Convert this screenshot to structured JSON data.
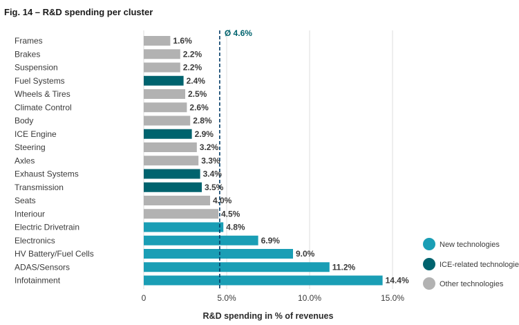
{
  "figure_title": "Fig. 14 – R&D spending per cluster",
  "colors": {
    "new": "#1a9eb5",
    "ice": "#00636e",
    "other": "#b2b2b2",
    "average": "#003a66",
    "avg_label": "#00636e",
    "grid": "#dcdcdc"
  },
  "chart_data": {
    "type": "bar",
    "orientation": "horizontal",
    "title": "R&D spending per cluster",
    "xlabel": "R&D spending in % of revenues",
    "ylabel": "",
    "xlim": [
      0,
      15
    ],
    "ticks": [
      {
        "value": 0,
        "label": "0"
      },
      {
        "value": 5,
        "label": "5.0%"
      },
      {
        "value": 10,
        "label": "10.0%"
      },
      {
        "value": 15,
        "label": "15.0%"
      }
    ],
    "average": {
      "value": 4.6,
      "label": "Ø 4.6%"
    },
    "categories": [
      "Frames",
      "Brakes",
      "Suspension",
      "Fuel Systems",
      "Wheels & Tires",
      "Climate Control",
      "Body",
      "ICE Engine",
      "Steering",
      "Axles",
      "Exhaust Systems",
      "Transmission",
      "Seats",
      "Interiour",
      "Electric Drivetrain",
      "Electronics",
      "HV Battery/Fuel Cells",
      "ADAS/Sensors",
      "Infotainment"
    ],
    "values": [
      1.6,
      2.2,
      2.2,
      2.4,
      2.5,
      2.6,
      2.8,
      2.9,
      3.2,
      3.3,
      3.4,
      3.5,
      4.0,
      4.5,
      4.8,
      6.9,
      9.0,
      11.2,
      14.4
    ],
    "value_labels": [
      "1.6%",
      "2.2%",
      "2.2%",
      "2.4%",
      "2.5%",
      "2.6%",
      "2.8%",
      "2.9%",
      "3.2%",
      "3.3%",
      "3.4%",
      "3.5%",
      "4.0%",
      "4.5%",
      "4.8%",
      "6.9%",
      "9.0%",
      "11.2%",
      "14.4%"
    ],
    "groups": [
      "other",
      "other",
      "other",
      "ice",
      "other",
      "other",
      "other",
      "ice",
      "other",
      "other",
      "ice",
      "ice",
      "other",
      "other",
      "new",
      "new",
      "new",
      "new",
      "new"
    ],
    "legend": [
      {
        "key": "new",
        "label": "New technologies"
      },
      {
        "key": "ice",
        "label": "ICE-related technologies"
      },
      {
        "key": "other",
        "label": "Other technologies"
      }
    ]
  }
}
